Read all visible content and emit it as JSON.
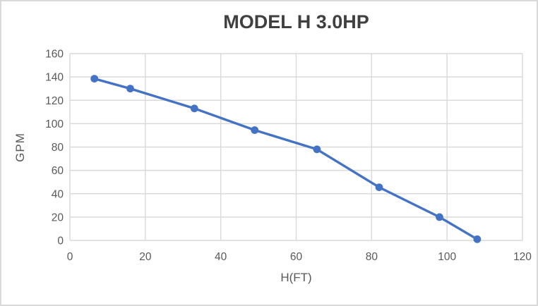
{
  "chart_data": {
    "type": "line",
    "title": "MODEL H 3.0HP",
    "xlabel": "H(FT)",
    "ylabel": "GPM",
    "x": [
      6.5,
      16,
      33,
      49,
      65.5,
      82,
      98,
      108
    ],
    "y": [
      138.5,
      130,
      113,
      94.5,
      78,
      45.5,
      20,
      1
    ],
    "xlim": [
      0,
      120
    ],
    "ylim": [
      0,
      160
    ],
    "x_ticks": [
      0,
      20,
      40,
      60,
      80,
      100,
      120
    ],
    "y_ticks": [
      0,
      20,
      40,
      60,
      80,
      100,
      120,
      140,
      160
    ],
    "grid": true,
    "legend": "none",
    "marker": "circle"
  },
  "styles": {
    "series-color": "#4472C4",
    "title-color": "#404040",
    "axis-text-color": "#595959",
    "gridline-color": "#D9D9D9",
    "border-color": "#D9D9D9",
    "background-color": "#FFFFFF"
  }
}
